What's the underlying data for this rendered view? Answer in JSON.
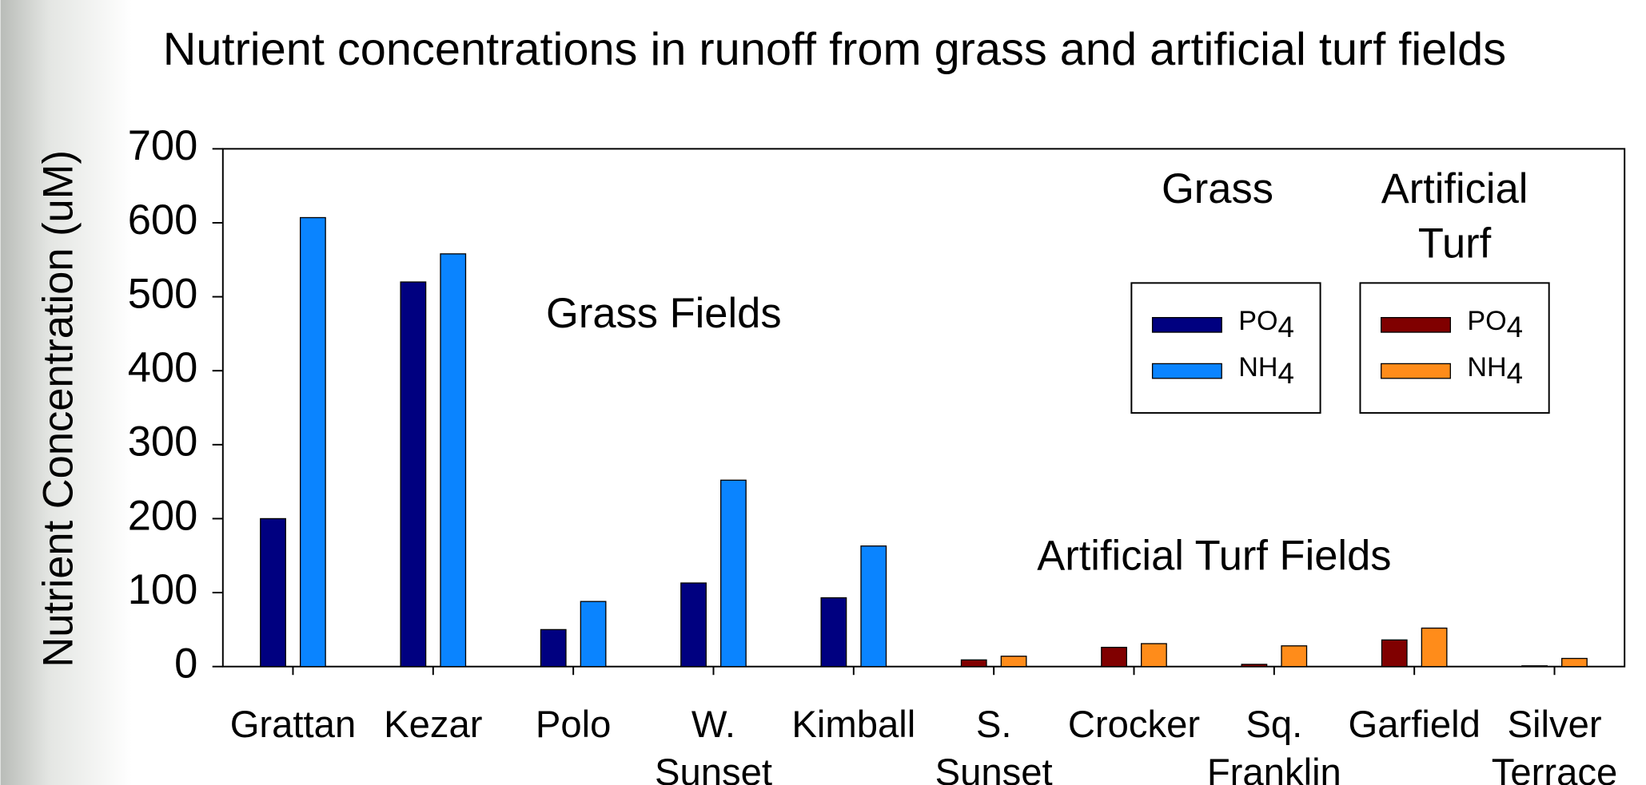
{
  "chart_data": {
    "type": "bar",
    "title": "Nutrient concentrations in runoff from grass and artificial turf fields",
    "y_label": "Nutrient Concentration (uM)",
    "categories": [
      "Grattan",
      "Kezar",
      "Polo",
      "W. Sunset",
      "Kimball",
      "S. Sunset",
      "Crocker",
      "Sq. Franklin",
      "Garfield",
      "Silver Terrace"
    ],
    "series_groups": [
      {
        "name": "Grass",
        "series": [
          {
            "name": "PO4",
            "color": "#000080",
            "values": [
              200,
              520,
              50,
              113,
              93,
              null,
              null,
              null,
              null,
              null
            ]
          },
          {
            "name": "NH4",
            "color": "#0a84ff",
            "values": [
              607,
              558,
              88,
              252,
              163,
              null,
              null,
              null,
              null,
              null
            ]
          }
        ]
      },
      {
        "name": "Artificial Turf",
        "series": [
          {
            "name": "PO4",
            "color": "#800000",
            "values": [
              null,
              null,
              null,
              null,
              null,
              9,
              26,
              3,
              36,
              1
            ]
          },
          {
            "name": "NH4",
            "color": "#ff8c1a",
            "values": [
              null,
              null,
              null,
              null,
              null,
              14,
              31,
              28,
              52,
              11
            ]
          }
        ]
      }
    ],
    "annotations": [
      "Grass Fields",
      "Artificial Turf Fields"
    ],
    "ylim": [
      0,
      700
    ],
    "yticks": [
      0,
      100,
      200,
      300,
      400,
      500,
      600,
      700
    ]
  }
}
